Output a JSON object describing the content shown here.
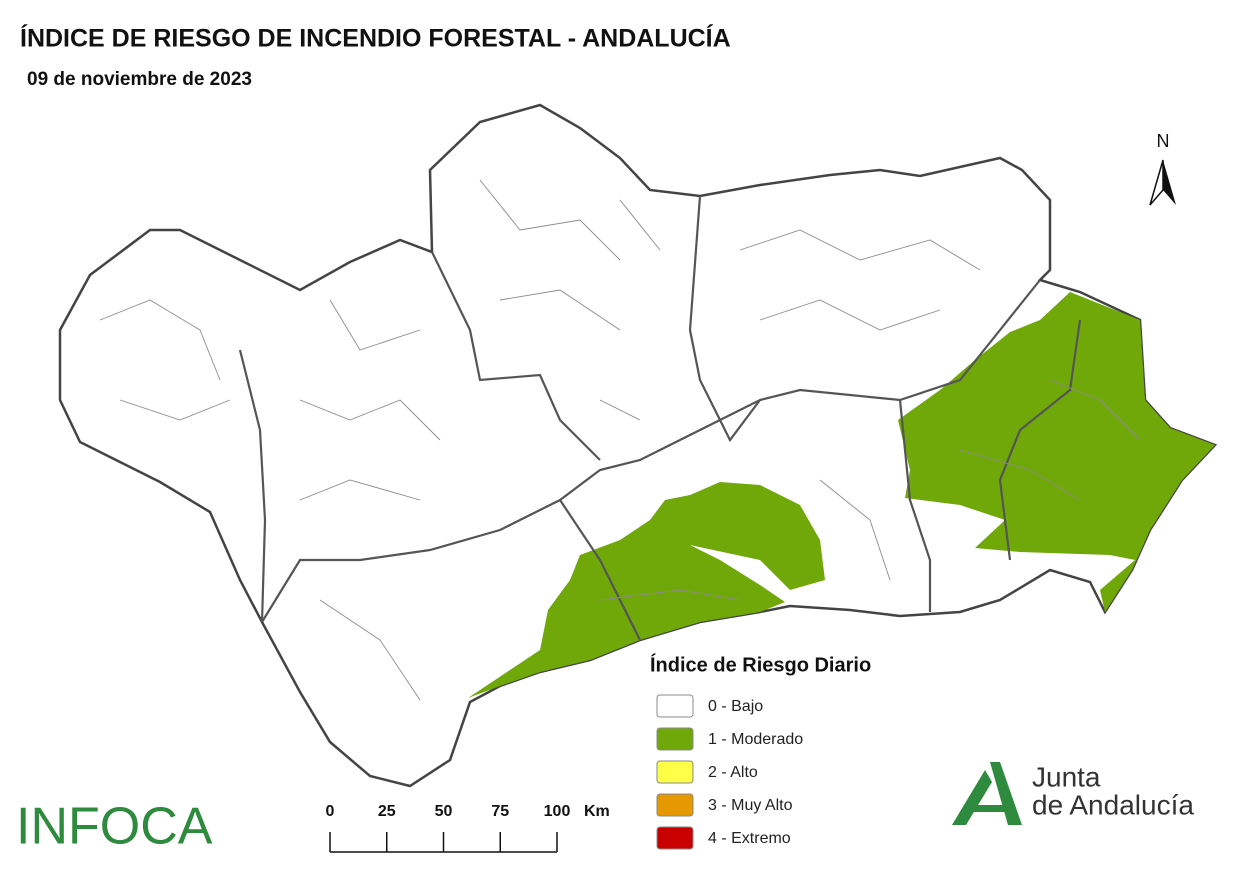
{
  "header": {
    "title": "ÍNDICE DE RIESGO DE INCENDIO FORESTAL - ANDALUCÍA",
    "date": "09 de noviembre de 2023"
  },
  "north": "N",
  "legend": {
    "title": "Índice de Riesgo Diario",
    "items": [
      {
        "label": "0 - Bajo",
        "color": "#ffffff"
      },
      {
        "label": "1 - Moderado",
        "color": "#70a80a"
      },
      {
        "label": "2 - Alto",
        "color": "#ffff47"
      },
      {
        "label": "3 - Muy Alto",
        "color": "#e69800"
      },
      {
        "label": "4 - Extremo",
        "color": "#c80000"
      }
    ]
  },
  "scale": {
    "ticks": [
      0,
      25,
      50,
      75,
      100
    ],
    "unit": "Km"
  },
  "logos": {
    "infoca": "INFOCA",
    "junta_line1": "Junta",
    "junta_line2": "de Andalucía"
  }
}
